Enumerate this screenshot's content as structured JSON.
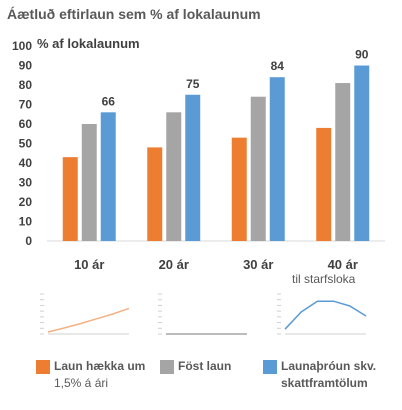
{
  "chart_title": "Áætluð eftirlaun sem % af lokalaunum",
  "chart_data": {
    "type": "bar",
    "title": "Áætluð eftirlaun sem % af lokalaunum",
    "ylabel": "% af lokalaunum",
    "ylim": [
      0,
      100
    ],
    "yticks": [
      0,
      10,
      20,
      30,
      40,
      50,
      60,
      70,
      80,
      90,
      100
    ],
    "categories": [
      "10 ár",
      "20 ár",
      "30 ár",
      "40 ár"
    ],
    "x_note": "til starfsloka",
    "series": [
      {
        "name": "Laun hækka um 1,5% á ári",
        "color": "#ED7D31",
        "values": [
          43,
          48,
          53,
          58
        ]
      },
      {
        "name": "Föst laun",
        "color": "#A5A5A5",
        "values": [
          60,
          66,
          74,
          81
        ]
      },
      {
        "name": "Launaþróun skv. skattframtölum",
        "color": "#5B9BD5",
        "values": [
          66,
          75,
          84,
          90
        ]
      }
    ],
    "data_labels_series": 2,
    "grid": false
  },
  "legend": [
    {
      "label_line1": "Laun hækka um",
      "label_line2": "1,5% á ári",
      "color": "#ED7D31"
    },
    {
      "label_line1": "Föst laun",
      "label_line2": "",
      "color": "#A5A5A5"
    },
    {
      "label_line1": "Launaþróun skv.",
      "label_line2": "skattframtölum",
      "color": "#5B9BD5"
    }
  ],
  "mini_charts": [
    {
      "type": "line",
      "color": "#F4B183",
      "shape": "rising",
      "values": [
        0.05,
        0.15,
        0.26,
        0.38,
        0.5,
        0.64
      ]
    },
    {
      "type": "line",
      "color": "#A5A5A5",
      "shape": "flat",
      "values": [
        0,
        0,
        0,
        0,
        0,
        0
      ]
    },
    {
      "type": "line",
      "color": "#5B9BD5",
      "shape": "hump",
      "values": [
        0.12,
        0.55,
        0.82,
        0.82,
        0.7,
        0.45
      ]
    }
  ]
}
